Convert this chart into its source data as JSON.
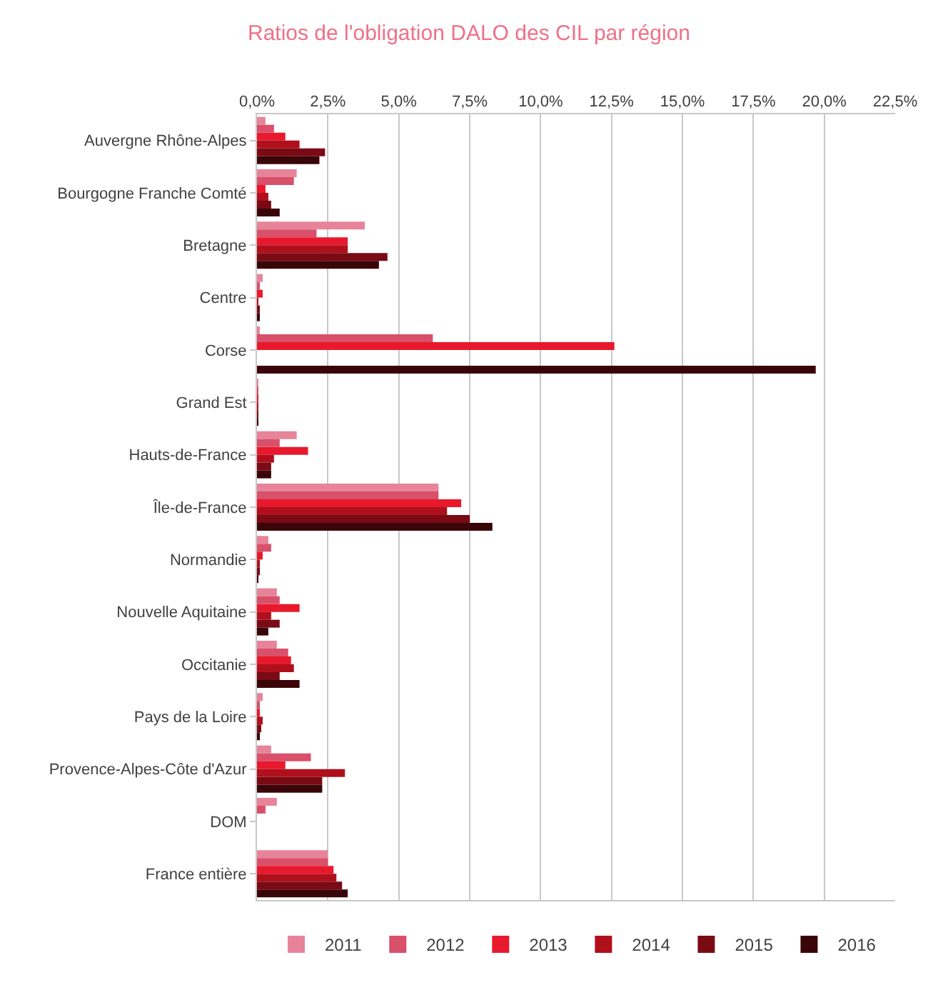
{
  "chart_data": {
    "type": "bar",
    "orientation": "horizontal",
    "title": "Ratios de l'obligation DALO des CIL par région",
    "categories": [
      "Auvergne Rhône-Alpes",
      "Bourgogne Franche Comté",
      "Bretagne",
      "Centre",
      "Corse",
      "Grand Est",
      "Hauts-de-France",
      "Île-de-France",
      "Normandie",
      "Nouvelle Aquitaine",
      "Occitanie",
      "Pays de la Loire",
      "Provence-Alpes-Côte d'Azur",
      "DOM",
      "France entière"
    ],
    "series": [
      {
        "name": "2011",
        "color": "#e8849a",
        "values": [
          0.3,
          1.4,
          3.8,
          0.2,
          0.1,
          0.05,
          1.4,
          6.4,
          0.4,
          0.7,
          0.7,
          0.2,
          0.5,
          0.7,
          2.5
        ]
      },
      {
        "name": "2012",
        "color": "#d9506a",
        "values": [
          0.6,
          1.3,
          2.1,
          0.1,
          6.2,
          0.05,
          0.8,
          6.4,
          0.5,
          0.8,
          1.1,
          0.1,
          1.9,
          0.3,
          2.5
        ]
      },
      {
        "name": "2013",
        "color": "#e8192c",
        "values": [
          1.0,
          0.3,
          3.2,
          0.2,
          12.6,
          0.05,
          1.8,
          7.2,
          0.2,
          1.5,
          1.2,
          0.1,
          1.0,
          0,
          2.7
        ]
      },
      {
        "name": "2014",
        "color": "#b0101c",
        "values": [
          1.5,
          0.4,
          3.2,
          0.05,
          0,
          0.05,
          0.6,
          6.7,
          0.1,
          0.5,
          1.3,
          0.2,
          3.1,
          0,
          2.8
        ]
      },
      {
        "name": "2015",
        "color": "#7a0a14",
        "values": [
          2.4,
          0.5,
          4.6,
          0.1,
          0,
          0.05,
          0.5,
          7.5,
          0.1,
          0.8,
          0.8,
          0.15,
          2.3,
          0,
          3.0
        ]
      },
      {
        "name": "2016",
        "color": "#3a0508",
        "values": [
          2.2,
          0.8,
          4.3,
          0.1,
          19.7,
          0.05,
          0.5,
          8.3,
          0.05,
          0.4,
          1.5,
          0.1,
          2.3,
          0,
          3.2
        ]
      }
    ],
    "xlim": [
      0,
      22.5
    ],
    "xticks": [
      {
        "value": 0,
        "label": "0,0%"
      },
      {
        "value": 2.5,
        "label": "2,5%"
      },
      {
        "value": 5,
        "label": "5,0%"
      },
      {
        "value": 7.5,
        "label": "7,5%"
      },
      {
        "value": 10,
        "label": "10,0%"
      },
      {
        "value": 12.5,
        "label": "12,5%"
      },
      {
        "value": 15,
        "label": "15,0%"
      },
      {
        "value": 17.5,
        "label": "17,5%"
      },
      {
        "value": 20,
        "label": "20,0%"
      },
      {
        "value": 22.5,
        "label": "22,5%"
      }
    ],
    "grid": "x",
    "legend": "bottom"
  }
}
